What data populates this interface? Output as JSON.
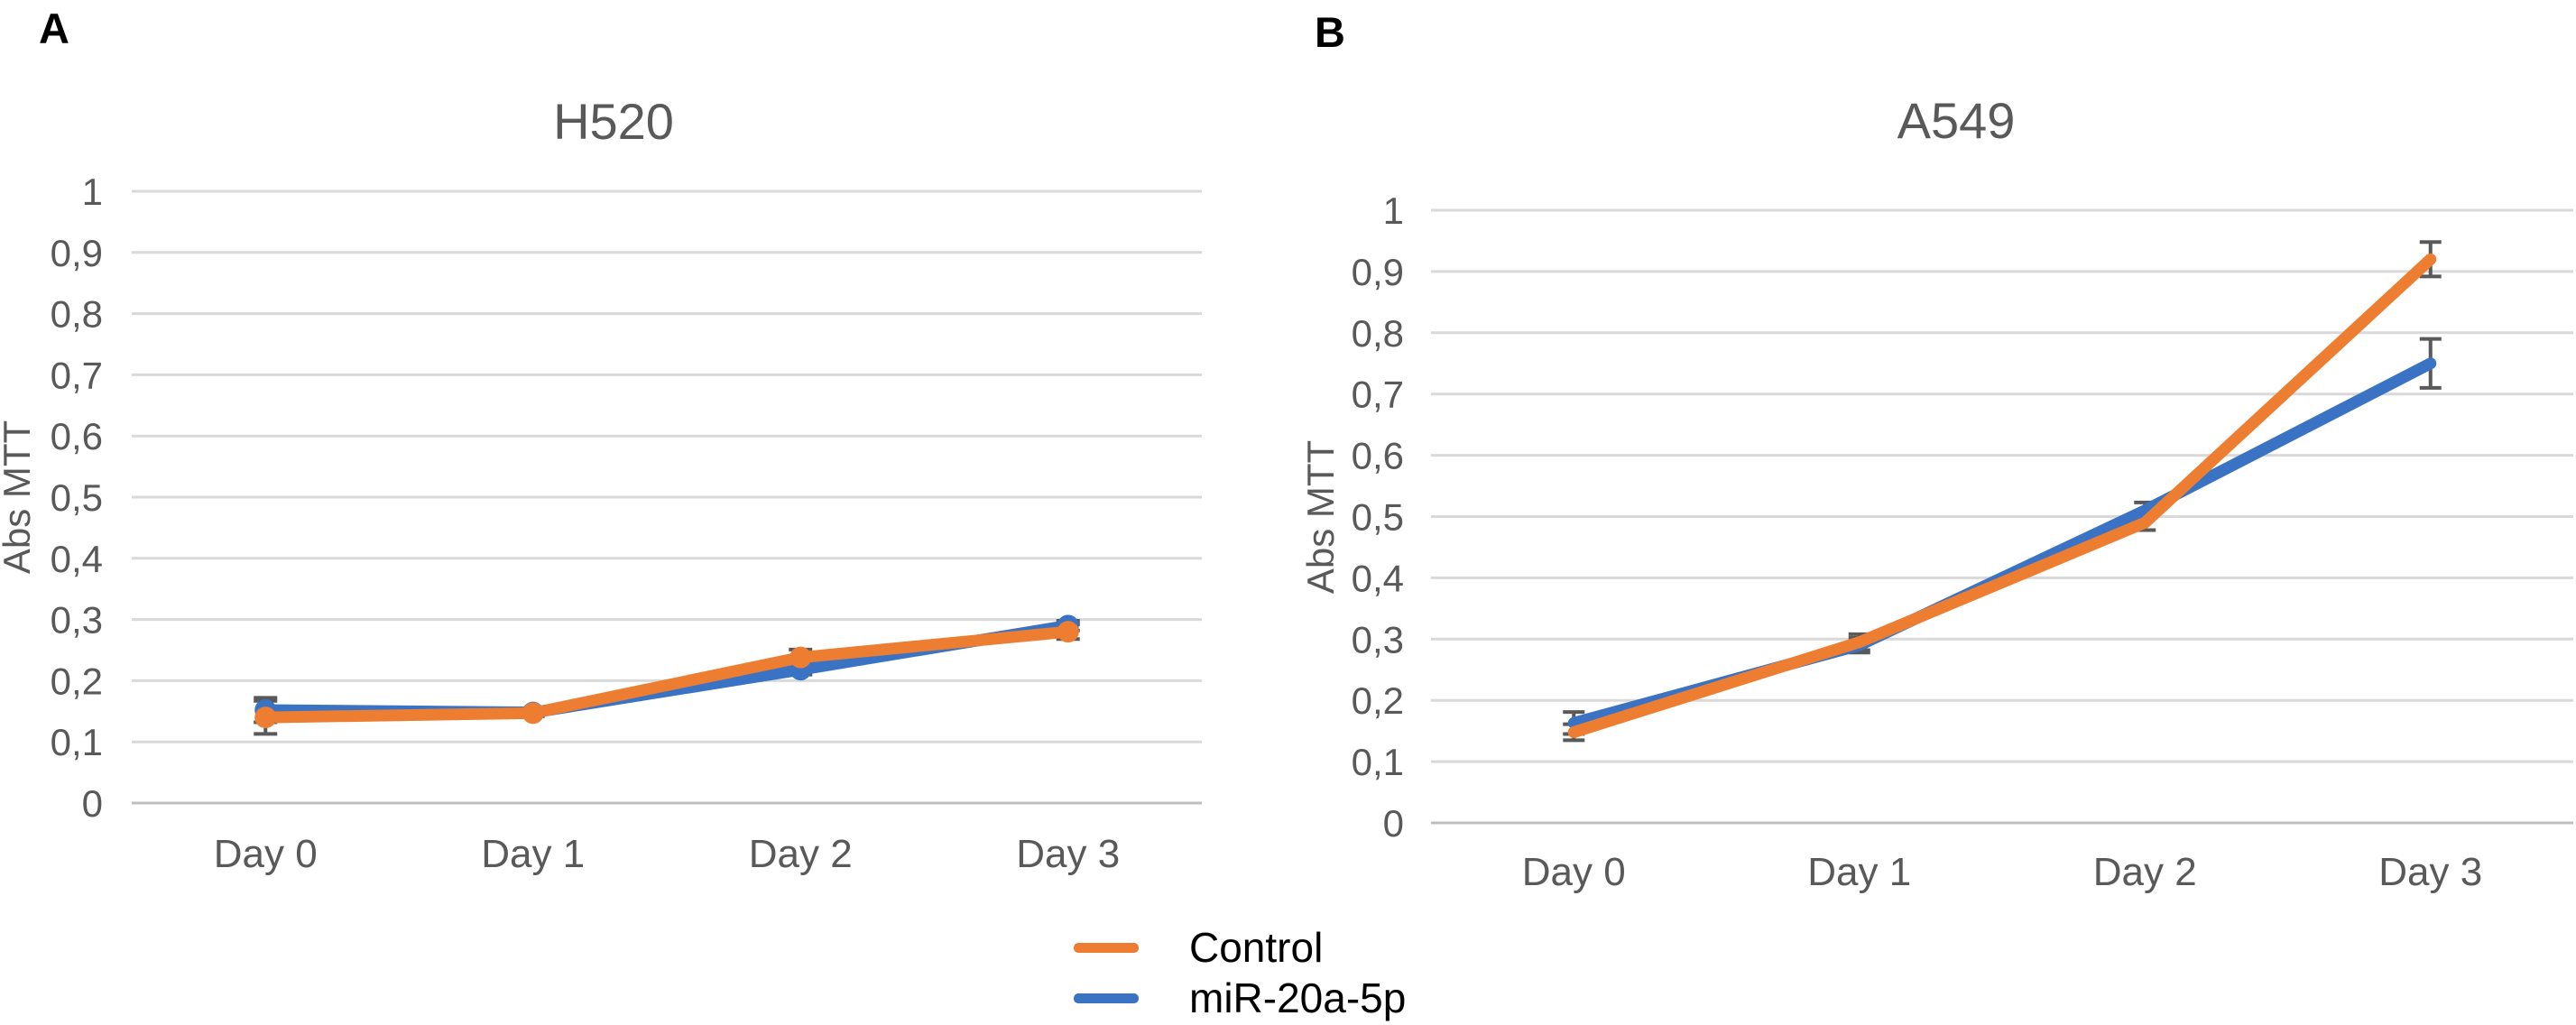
{
  "page": {
    "background": "#FFFFFF"
  },
  "panels": [
    {
      "label": "A"
    },
    {
      "label": "B"
    }
  ],
  "legend": {
    "position": "bottom-center",
    "items": [
      {
        "label": "Control",
        "color": "#ED7D31",
        "swatch": "line"
      },
      {
        "label": "miR-20a-5p",
        "color": "#3B73C4",
        "swatch": "line"
      }
    ]
  },
  "style_colors": {
    "gridline": "#D9D9D9",
    "axis_line": "#BFBFBF",
    "error_bar": "#595959",
    "axis_text": "#595959",
    "title_text": "#595959"
  },
  "chart_data": [
    {
      "type": "line",
      "panel": "A",
      "title": "H520",
      "ylabel": "Abs MTT",
      "xlabel": "",
      "categories": [
        "Day 0",
        "Day 1",
        "Day 2",
        "Day 3"
      ],
      "ylim": [
        0,
        1
      ],
      "ytick_step": 0.1,
      "ytick_labels_top_to_bottom": [
        "1",
        "0,9",
        "0,8",
        "0,7",
        "0,6",
        "0,5",
        "0,4",
        "0,3",
        "0,2",
        "0,1",
        "0"
      ],
      "grid": true,
      "series": [
        {
          "name": "miR-20a-5p",
          "color": "#3B73C4",
          "markers": true,
          "values": [
            0.152,
            0.148,
            0.218,
            0.29
          ],
          "error": [
            0.02,
            0.005,
            0.008,
            0.008
          ]
        },
        {
          "name": "Control",
          "color": "#ED7D31",
          "markers": true,
          "values": [
            0.14,
            0.147,
            0.238,
            0.28
          ],
          "error": [
            0.027,
            0.005,
            0.013,
            0.012
          ]
        }
      ]
    },
    {
      "type": "line",
      "panel": "B",
      "title": "A549",
      "ylabel": "Abs MTT",
      "xlabel": "",
      "categories": [
        "Day 0",
        "Day 1",
        "Day 2",
        "Day 3"
      ],
      "ylim": [
        0,
        1
      ],
      "ytick_step": 0.1,
      "ytick_labels_top_to_bottom": [
        "1",
        "0,9",
        "0,8",
        "0,7",
        "0,6",
        "0,5",
        "0,4",
        "0,3",
        "0,2",
        "0,1",
        "0"
      ],
      "grid": true,
      "series": [
        {
          "name": "miR-20a-5p",
          "color": "#3B73C4",
          "markers": false,
          "values": [
            0.163,
            0.29,
            0.51,
            0.75
          ],
          "error": [
            0.018,
            0.012,
            0.013,
            0.04
          ]
        },
        {
          "name": "Control",
          "color": "#ED7D31",
          "markers": false,
          "values": [
            0.148,
            0.295,
            0.49,
            0.92
          ],
          "error": [
            0.013,
            0.013,
            0.012,
            0.028
          ]
        }
      ]
    }
  ]
}
